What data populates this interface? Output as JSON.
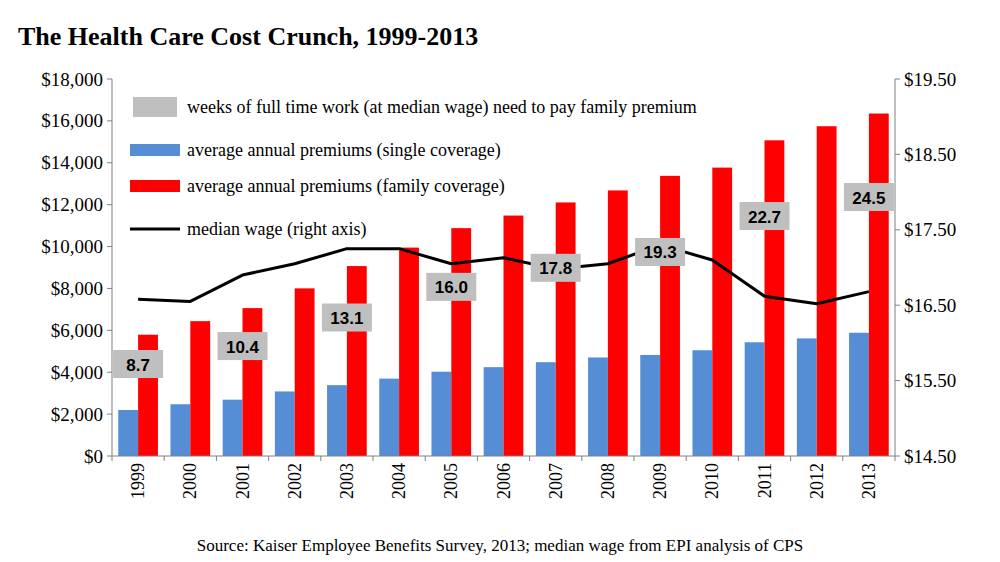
{
  "chart_data": {
    "type": "bar",
    "title": "The Health Care Cost Crunch, 1999-2013",
    "source": "Source: Kaiser Employee Benefits Survey, 2013; median wage from EPI analysis of CPS",
    "categories": [
      "1999",
      "2000",
      "2001",
      "2002",
      "2003",
      "2004",
      "2005",
      "2006",
      "2007",
      "2008",
      "2009",
      "2010",
      "2011",
      "2012",
      "2013"
    ],
    "legend": "top-left",
    "grid": false,
    "ylim": [
      0,
      18000
    ],
    "yticks": [
      {
        "value": 0,
        "label": "$0"
      },
      {
        "value": 2000,
        "label": "$2,000"
      },
      {
        "value": 4000,
        "label": "$4,000"
      },
      {
        "value": 6000,
        "label": "$6,000"
      },
      {
        "value": 8000,
        "label": "$8,000"
      },
      {
        "value": 10000,
        "label": "$10,000"
      },
      {
        "value": 12000,
        "label": "$12,000"
      },
      {
        "value": 14000,
        "label": "$14,000"
      },
      {
        "value": 16000,
        "label": "$16,000"
      },
      {
        "value": 18000,
        "label": "$18,000"
      }
    ],
    "y2lim": [
      14.5,
      19.5
    ],
    "y2ticks": [
      {
        "value": 14.5,
        "label": "$14.50"
      },
      {
        "value": 15.5,
        "label": "$15.50"
      },
      {
        "value": 16.5,
        "label": "$16.50"
      },
      {
        "value": 17.5,
        "label": "$17.50"
      },
      {
        "value": 18.5,
        "label": "$18.50"
      },
      {
        "value": 19.5,
        "label": "$19.50"
      }
    ],
    "series": [
      {
        "name": "weeks of full time work (at median wage) need to pay family premium",
        "type": "label",
        "color": "#bfbfbf",
        "data_labels": true,
        "values": [
          8.7,
          null,
          10.4,
          null,
          13.1,
          null,
          16.0,
          null,
          17.8,
          null,
          19.3,
          null,
          22.7,
          null,
          24.5
        ],
        "value_labels": [
          "8.7",
          null,
          "10.4",
          null,
          "13.1",
          null,
          "16.0",
          null,
          "17.8",
          null,
          "19.3",
          null,
          "22.7",
          null,
          "24.5"
        ]
      },
      {
        "name": "average annual premiums (single coverage)",
        "type": "bar",
        "color": "#558ed5",
        "values": [
          2196,
          2471,
          2689,
          3083,
          3383,
          3695,
          4024,
          4242,
          4479,
          4704,
          4824,
          5049,
          5429,
          5615,
          5884
        ]
      },
      {
        "name": "average annual premiums (family coverage)",
        "type": "bar",
        "color": "#ff0000",
        "values": [
          5791,
          6438,
          7061,
          8003,
          9068,
          9950,
          10880,
          11480,
          12106,
          12680,
          13375,
          13770,
          15073,
          15745,
          16351
        ]
      },
      {
        "name": "median wage (right axis)",
        "type": "line",
        "color": "#000000",
        "axis": "y2",
        "line_style": "solid",
        "values": [
          16.58,
          16.55,
          16.9,
          17.05,
          17.25,
          17.25,
          17.05,
          17.13,
          16.98,
          17.05,
          17.3,
          17.1,
          16.62,
          16.52,
          16.68
        ]
      }
    ]
  }
}
